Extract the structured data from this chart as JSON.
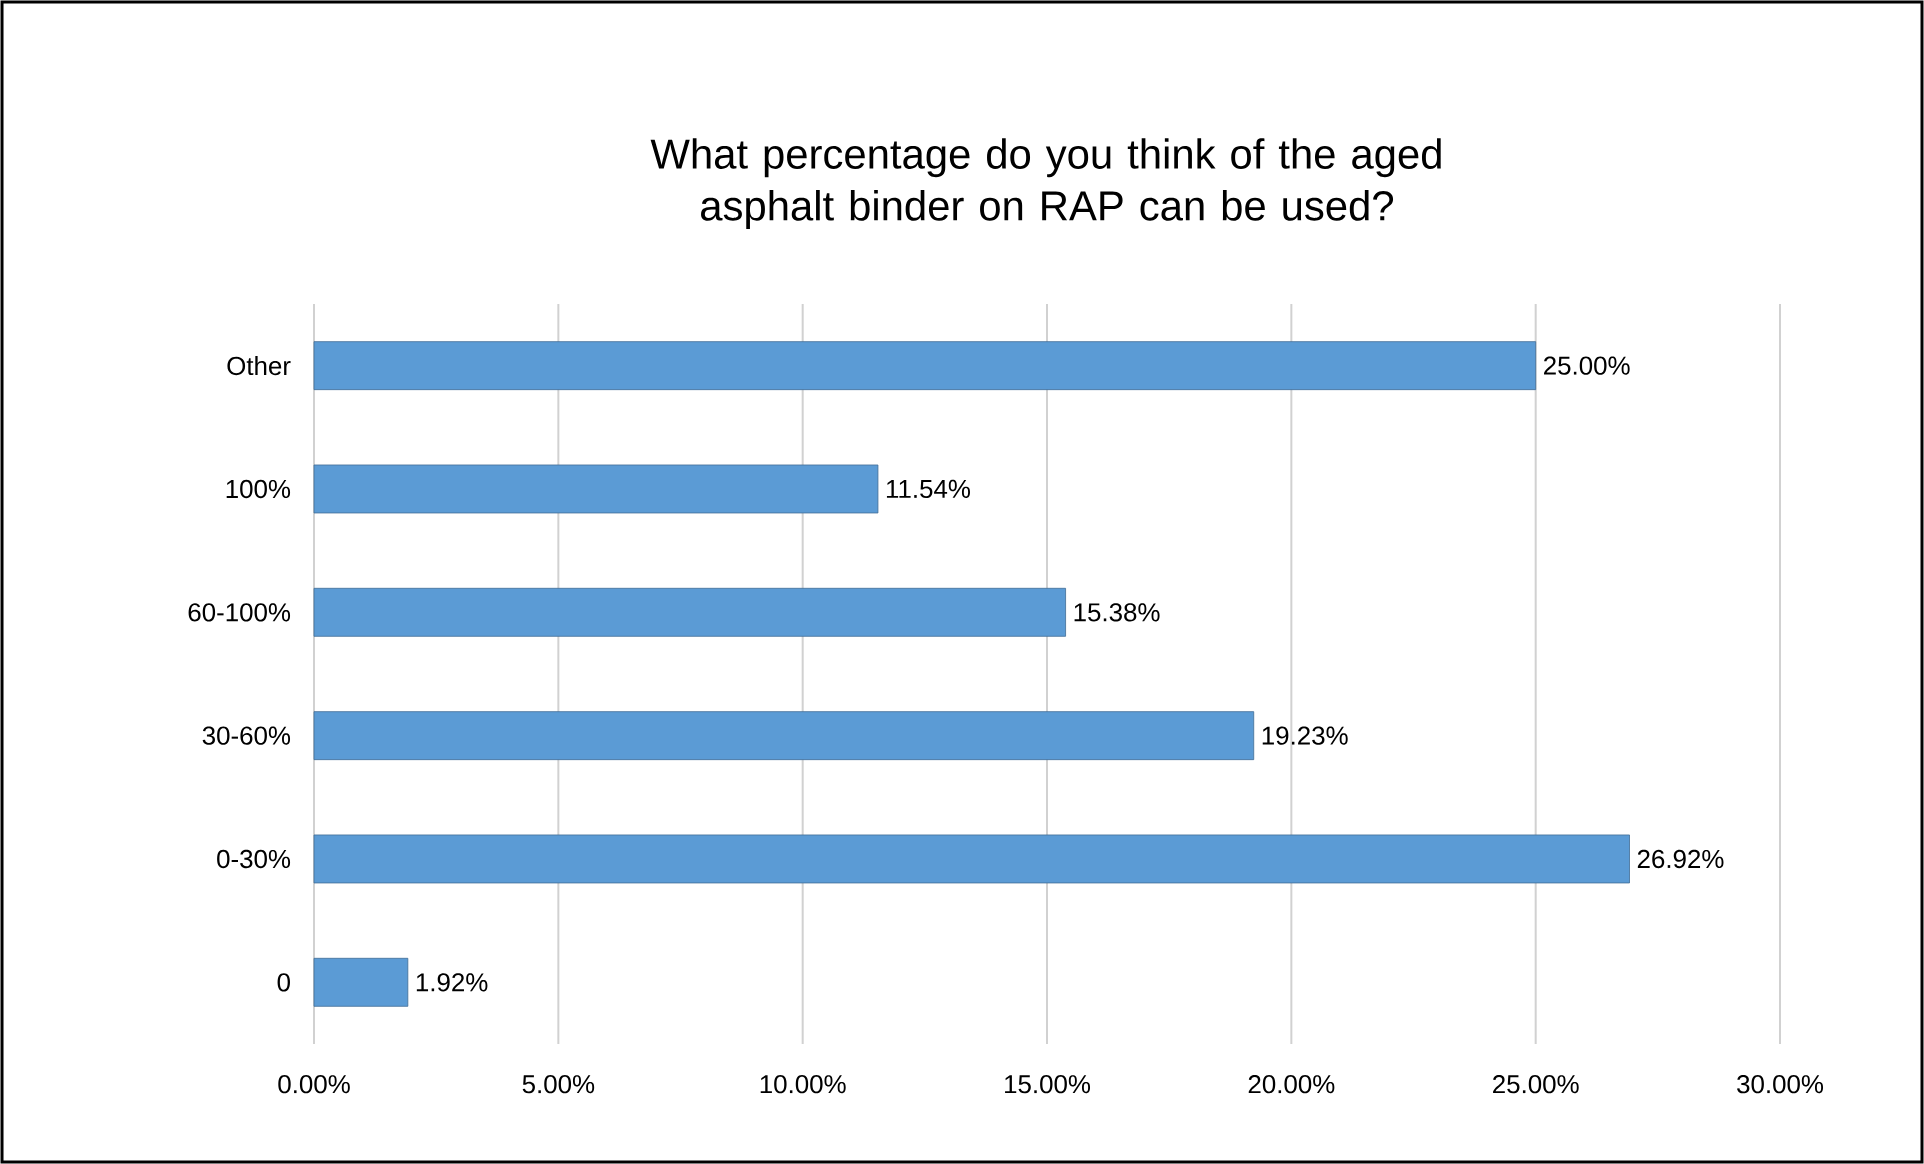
{
  "chart_data": {
    "type": "bar",
    "orientation": "horizontal",
    "title": "What percentage do you think of the aged asphalt binder on RAP can be used?",
    "categories": [
      "Other",
      "100%",
      "60-100%",
      "30-60%",
      "0-30%",
      "0"
    ],
    "values": [
      25.0,
      11.54,
      15.38,
      19.23,
      26.92,
      1.92
    ],
    "value_labels": [
      "25.00%",
      "11.54%",
      "15.38%",
      "19.23%",
      "26.92%",
      "1.92%"
    ],
    "color": "#5b9bd5",
    "xlim": [
      0,
      30
    ],
    "xticks": [
      {
        "value": 0,
        "label": "0.00%"
      },
      {
        "value": 5,
        "label": "5.00%"
      },
      {
        "value": 10,
        "label": "10.00%"
      },
      {
        "value": 15,
        "label": "15.00%"
      },
      {
        "value": 20,
        "label": "20.00%"
      },
      {
        "value": 25,
        "label": "25.00%"
      },
      {
        "value": 30,
        "label": "30.00%"
      }
    ],
    "grid": "x"
  }
}
